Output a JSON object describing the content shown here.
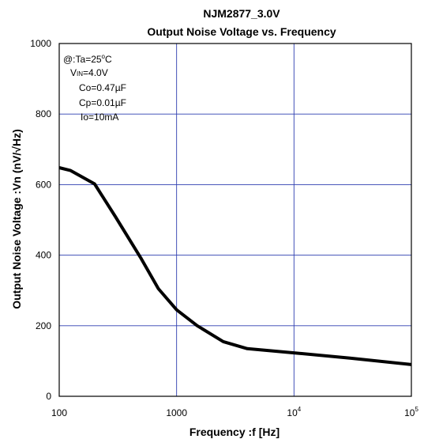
{
  "chart_data": {
    "type": "line",
    "title": "NJM2877_3.0V",
    "subtitle": "Output Noise Voltage vs. Frequency",
    "xlabel": "Frequency :f [Hz]",
    "ylabel": "Output Noise Voltage :Vn (nV/√Hz)",
    "x_scale": "log",
    "xlim": [
      100,
      100000
    ],
    "ylim": [
      0,
      1000
    ],
    "x_ticks": [
      {
        "value": 100,
        "label": "100"
      },
      {
        "value": 1000,
        "label": "1000"
      },
      {
        "value": 10000,
        "base": "10",
        "exp": "4"
      },
      {
        "value": 100000,
        "base": "10",
        "exp": "5"
      }
    ],
    "y_ticks": [
      {
        "value": 0,
        "label": "0"
      },
      {
        "value": 200,
        "label": "200"
      },
      {
        "value": 400,
        "label": "400"
      },
      {
        "value": 600,
        "label": "600"
      },
      {
        "value": 800,
        "label": "800"
      },
      {
        "value": 1000,
        "label": "1000"
      }
    ],
    "grid": true,
    "grid_color": "#2f3fb0",
    "line_color": "#000000",
    "annotations": {
      "cond1": {
        "pre": "@:Ta=25",
        "sup": "o",
        "post": "C"
      },
      "cond2": {
        "pre": "V",
        "sub": "IN",
        "post": "=4.0V"
      },
      "cond3": "Co=0.47µF",
      "cond4": "Cp=0.01µF",
      "cond5": "Io=10mA"
    },
    "series": [
      {
        "x": [
          100,
          125,
          200,
          300,
          500,
          700,
          1000,
          1500,
          2500,
          4000,
          10000,
          30000,
          100000
        ],
        "values": [
          648,
          640,
          602,
          510,
          390,
          305,
          245,
          200,
          155,
          135,
          123,
          108,
          90
        ]
      }
    ]
  }
}
